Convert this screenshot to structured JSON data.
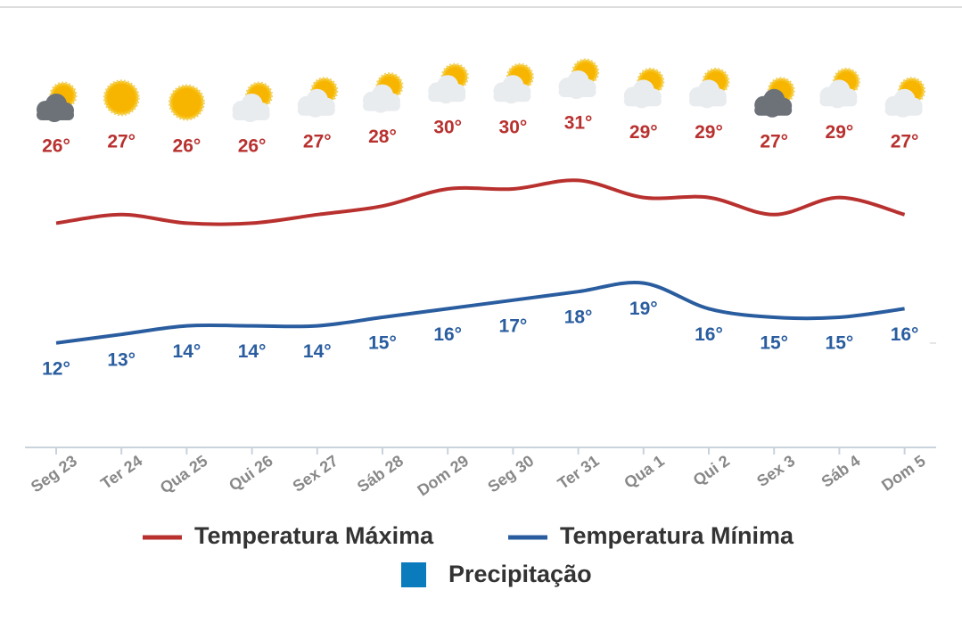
{
  "chart_data": {
    "type": "line",
    "categories": [
      "Seg 23",
      "Ter 24",
      "Qua 25",
      "Qui 26",
      "Sex 27",
      "Sáb 28",
      "Dom 29",
      "Seg 30",
      "Ter 31",
      "Qua 1",
      "Qui 2",
      "Sex 3",
      "Sáb 4",
      "Dom 5"
    ],
    "series": [
      {
        "name": "Temperatura Máxima",
        "color": "#b8312f",
        "values": [
          26,
          27,
          26,
          26,
          27,
          28,
          30,
          30,
          31,
          29,
          29,
          27,
          29,
          27
        ],
        "value_labels": [
          "26°",
          "27°",
          "26°",
          "26°",
          "27°",
          "28°",
          "30°",
          "30°",
          "31°",
          "29°",
          "29°",
          "27°",
          "29°",
          "27°"
        ]
      },
      {
        "name": "Temperatura Mínima",
        "color": "#2a5d9f",
        "values": [
          12,
          13,
          14,
          14,
          14,
          15,
          16,
          17,
          18,
          19,
          16,
          15,
          15,
          16
        ],
        "value_labels": [
          "12°",
          "13°",
          "14°",
          "14°",
          "14°",
          "15°",
          "16°",
          "17°",
          "18°",
          "19°",
          "16°",
          "15°",
          "15°",
          "16°"
        ]
      },
      {
        "name": "Precipitação",
        "color": "#0a7bbd",
        "type": "bar",
        "values": [
          null,
          null,
          null,
          null,
          null,
          null,
          null,
          null,
          null,
          null,
          null,
          null,
          null,
          null
        ]
      }
    ],
    "ylim": [
      0,
      40
    ]
  }
}
